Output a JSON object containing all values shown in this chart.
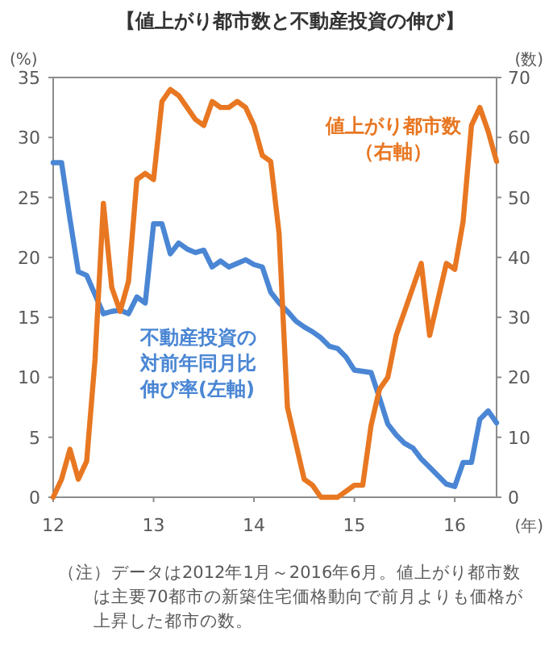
{
  "chart_data": {
    "type": "line",
    "title": "【値上がり都市数と不動産投資の伸び】",
    "ylabel": "(%)",
    "y2label": "(数)",
    "xlabel": "(年)",
    "x": [
      "2012-01",
      "2012-02",
      "2012-03",
      "2012-04",
      "2012-05",
      "2012-06",
      "2012-07",
      "2012-08",
      "2012-09",
      "2012-10",
      "2012-11",
      "2012-12",
      "2013-01",
      "2013-02",
      "2013-03",
      "2013-04",
      "2013-05",
      "2013-06",
      "2013-07",
      "2013-08",
      "2013-09",
      "2013-10",
      "2013-11",
      "2013-12",
      "2014-01",
      "2014-02",
      "2014-03",
      "2014-04",
      "2014-05",
      "2014-06",
      "2014-07",
      "2014-08",
      "2014-09",
      "2014-10",
      "2014-11",
      "2014-12",
      "2015-01",
      "2015-02",
      "2015-03",
      "2015-04",
      "2015-05",
      "2015-06",
      "2015-07",
      "2015-08",
      "2015-09",
      "2015-10",
      "2015-11",
      "2015-12",
      "2016-01",
      "2016-02",
      "2016-03",
      "2016-04",
      "2016-05",
      "2016-06"
    ],
    "xlim": [
      "2012-01",
      "2016-06"
    ],
    "xticks": [
      {
        "value": "2012-01",
        "label": "12"
      },
      {
        "value": "2013-01",
        "label": "13"
      },
      {
        "value": "2014-01",
        "label": "14"
      },
      {
        "value": "2015-01",
        "label": "15"
      },
      {
        "value": "2016-01",
        "label": "16"
      }
    ],
    "ylim": [
      0,
      35
    ],
    "yticks": [
      0,
      5,
      10,
      15,
      20,
      25,
      30,
      35
    ],
    "y2lim": [
      0,
      70
    ],
    "y2ticks": [
      0,
      10,
      20,
      30,
      40,
      50,
      60,
      70
    ],
    "grid": false,
    "marker": "none",
    "line_style": "solid",
    "series": [
      {
        "name": "不動産投資の対前年同月比伸び率(左軸)",
        "color": "#4a86d4",
        "values": [
          27.9,
          27.9,
          23.2,
          18.8,
          18.5,
          16.9,
          15.3,
          15.5,
          15.6,
          15.3,
          16.7,
          16.2,
          22.8,
          22.8,
          20.3,
          21.2,
          20.7,
          20.4,
          20.6,
          19.2,
          19.7,
          19.2,
          19.5,
          19.8,
          19.4,
          19.2,
          17.1,
          16.2,
          15.5,
          14.7,
          14.2,
          13.8,
          13.3,
          12.6,
          12.4,
          11.7,
          10.6,
          10.5,
          10.4,
          8.3,
          6.1,
          5.2,
          4.5,
          4.1,
          3.2,
          2.5,
          1.8,
          1.1,
          0.9,
          2.9,
          2.9,
          6.5,
          7.2,
          6.2
        ]
      },
      {
        "name": "値上がり都市数（右軸）",
        "color": "#e87722",
        "axis": "y2",
        "values": [
          0,
          3,
          8,
          3,
          6,
          23,
          49,
          35,
          31,
          36,
          53,
          54,
          53,
          66,
          68,
          67,
          65,
          63,
          62,
          66,
          65,
          65,
          66,
          65,
          62,
          57,
          56,
          44,
          15,
          9,
          3,
          2,
          0,
          0,
          0,
          1,
          2,
          2,
          12,
          18,
          20,
          27,
          31,
          35,
          39,
          27,
          33,
          39,
          38,
          46,
          62,
          65,
          61,
          56
        ]
      }
    ],
    "annotations": [
      "（注）データは2012年1月～2016年6月。値上がり都市数は主要70都市の新築住宅価格動向で前月よりも価格が上昇した都市の数。"
    ]
  }
}
